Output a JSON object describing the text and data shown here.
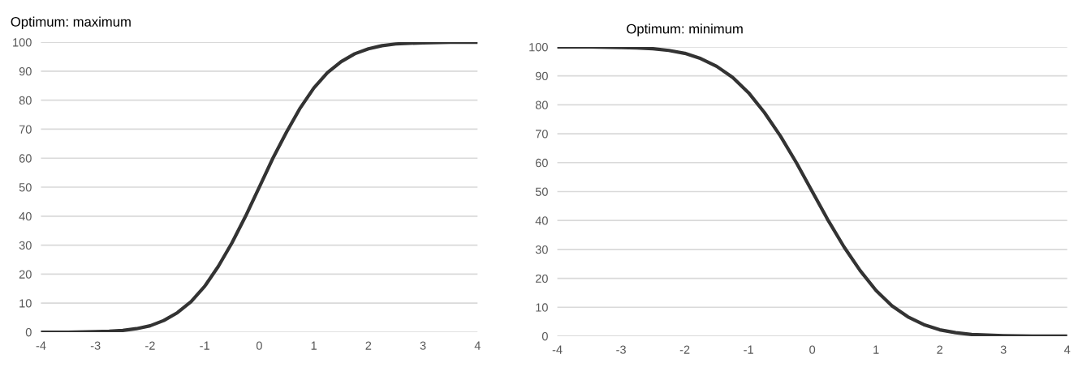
{
  "chart_data": [
    {
      "type": "line",
      "title": "Optimum: maximum",
      "x": [
        -4,
        -3.5,
        -3,
        -2.75,
        -2.5,
        -2.25,
        -2,
        -1.75,
        -1.5,
        -1.25,
        -1,
        -0.75,
        -0.5,
        -0.25,
        0,
        0.25,
        0.5,
        0.75,
        1,
        1.25,
        1.5,
        1.75,
        2,
        2.25,
        2.5,
        3,
        3.5,
        4
      ],
      "series": [
        {
          "color": "#333333",
          "values": [
            0,
            0,
            0.2,
            0.3,
            0.6,
            1.2,
            2.2,
            4,
            6.7,
            10.5,
            15.8,
            22.7,
            30.8,
            40,
            50,
            60,
            69,
            77.3,
            84.2,
            89.5,
            93.3,
            96,
            97.7,
            98.8,
            99.4,
            99.8,
            100,
            100
          ]
        }
      ],
      "xlim": [
        -4,
        4
      ],
      "xticks": [
        -4,
        -3,
        -2,
        -1,
        0,
        1,
        2,
        3,
        4
      ],
      "ylim": [
        0,
        100
      ],
      "yticks": [
        0,
        10,
        20,
        30,
        40,
        50,
        60,
        70,
        80,
        90,
        100
      ],
      "grid": "y",
      "marker": "none",
      "line_style": "solid"
    },
    {
      "type": "line",
      "title": "Optimum: minimum",
      "x": [
        -4,
        -3.5,
        -3,
        -2.75,
        -2.5,
        -2.25,
        -2,
        -1.75,
        -1.5,
        -1.25,
        -1,
        -0.75,
        -0.5,
        -0.25,
        0,
        0.25,
        0.5,
        0.75,
        1,
        1.25,
        1.5,
        1.75,
        2,
        2.25,
        2.5,
        3,
        3.5,
        4
      ],
      "series": [
        {
          "color": "#333333",
          "values": [
            100,
            100,
            99.8,
            99.7,
            99.4,
            98.8,
            97.8,
            96,
            93.3,
            89.5,
            84.2,
            77.3,
            69.2,
            60,
            50,
            40,
            30.8,
            22.7,
            15.8,
            10.5,
            6.7,
            4,
            2.2,
            1.2,
            0.6,
            0.2,
            0,
            0
          ]
        }
      ],
      "xlim": [
        -4,
        4
      ],
      "xticks": [
        -4,
        -3,
        -2,
        -1,
        0,
        1,
        2,
        3,
        4
      ],
      "ylim": [
        0,
        100
      ],
      "yticks": [
        0,
        10,
        20,
        30,
        40,
        50,
        60,
        70,
        80,
        90,
        100
      ],
      "grid": "y",
      "marker": "none",
      "line_style": "solid"
    }
  ]
}
